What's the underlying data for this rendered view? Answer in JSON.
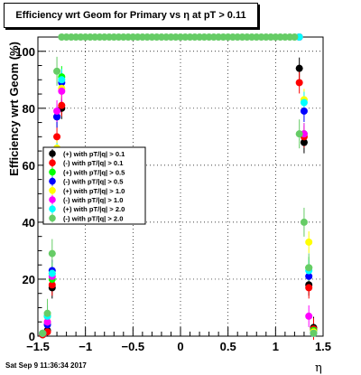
{
  "chart_data": {
    "type": "scatter",
    "title": "Efficiency wrt Geom for Primary vs   η at pT > 0.11",
    "xlabel": "η",
    "ylabel": "Efficiency wrt Geom (%)",
    "xlim": [
      -1.5,
      1.5
    ],
    "ylim": [
      0,
      105
    ],
    "x_ticks": [
      "−1.5",
      "−1",
      "−0.5",
      "0",
      "0.5",
      "1",
      "1.5"
    ],
    "y_ticks": [
      "0",
      "20",
      "40",
      "60",
      "80",
      "100"
    ],
    "grid": true,
    "legend_position": "left-middle",
    "series": [
      {
        "name": "(+) with pT/|q| > 0.1",
        "color": "#000000",
        "x": [
          -1.45,
          -1.4,
          -1.35,
          -1.3,
          -1.25,
          1.25,
          1.3,
          1.35,
          1.4
        ],
        "y": [
          0.5,
          2,
          17,
          77,
          80,
          94,
          68,
          18,
          3
        ]
      },
      {
        "name": "(-) with pT/|q| > 0.1",
        "color": "#ff0000",
        "x": [
          -1.45,
          -1.4,
          -1.35,
          -1.3,
          -1.25,
          1.25,
          1.3,
          1.35,
          1.4
        ],
        "y": [
          0.5,
          1.5,
          18,
          70,
          81,
          89,
          70,
          17,
          2.5
        ]
      },
      {
        "name": "(+) with pT/|q| > 0.5",
        "color": "#00ff00",
        "x": [
          -1.45,
          -1.4,
          -1.35,
          -1.3,
          -1.25,
          1.25,
          1.3,
          1.35,
          1.4
        ],
        "y": [
          1,
          7,
          20,
          63,
          91,
          105,
          71,
          24,
          2
        ]
      },
      {
        "name": "(-) with pT/|q| > 0.5",
        "color": "#0000ff",
        "x": [
          -1.45,
          -1.4,
          -1.35,
          -1.3,
          -1.25,
          1.25,
          1.3,
          1.35,
          1.4
        ],
        "y": [
          1,
          4,
          23,
          77,
          89,
          105,
          79,
          21,
          1.5
        ]
      },
      {
        "name": "(+) with pT/|q| > 1.0",
        "color": "#ffff00",
        "x": [
          -1.45,
          -1.4,
          -1.35,
          -1.3,
          -1.25,
          1.25,
          1.3,
          1.35,
          1.4
        ],
        "y": [
          1,
          5,
          22,
          66,
          87,
          105,
          83,
          33,
          1.5
        ]
      },
      {
        "name": "(-) with pT/|q| > 1.0",
        "color": "#ff00ff",
        "x": [
          -1.45,
          -1.4,
          -1.35,
          -1.3,
          -1.25,
          1.25,
          1.3,
          1.35,
          1.4
        ],
        "y": [
          1,
          5,
          21,
          79,
          86,
          105,
          71,
          7,
          1
        ]
      },
      {
        "name": "(+) with pT/|q| > 2.0",
        "color": "#00ffff",
        "x": [
          -1.45,
          -1.4,
          -1.35,
          -1.3,
          -1.25,
          1.25,
          1.3,
          1.35,
          1.4
        ],
        "y": [
          1,
          7,
          22,
          64,
          90,
          105,
          82,
          23,
          1
        ]
      },
      {
        "name": "(-) with pT/|q| > 2.0",
        "color": "#66cc66",
        "x": [
          -1.45,
          -1.4,
          -1.35,
          -1.3,
          -1.25,
          -1.2,
          -1.15,
          -1.1,
          -1.05,
          -1.0,
          -0.95,
          -0.9,
          -0.85,
          -0.8,
          -0.75,
          -0.7,
          -0.65,
          -0.6,
          -0.55,
          -0.5,
          -0.45,
          -0.4,
          -0.35,
          -0.3,
          -0.25,
          -0.2,
          -0.15,
          -0.1,
          -0.05,
          0.0,
          0.05,
          0.1,
          0.15,
          0.2,
          0.25,
          0.3,
          0.35,
          0.4,
          0.45,
          0.5,
          0.55,
          0.6,
          0.65,
          0.7,
          0.75,
          0.8,
          0.85,
          0.9,
          0.95,
          1.0,
          1.05,
          1.1,
          1.15,
          1.2,
          1.25,
          1.3,
          1.35,
          1.4
        ],
        "y": [
          1,
          8,
          29,
          93,
          105,
          105,
          105,
          105,
          105,
          105,
          105,
          105,
          105,
          105,
          105,
          105,
          105,
          105,
          105,
          105,
          105,
          105,
          105,
          105,
          105,
          105,
          105,
          105,
          105,
          105,
          105,
          105,
          105,
          105,
          105,
          105,
          105,
          105,
          105,
          105,
          105,
          105,
          105,
          105,
          105,
          105,
          105,
          105,
          105,
          105,
          105,
          105,
          105,
          105,
          71,
          40,
          24,
          1
        ]
      }
    ]
  },
  "footer": {
    "timestamp": "Sat Sep  9 11:36:34 2017"
  }
}
